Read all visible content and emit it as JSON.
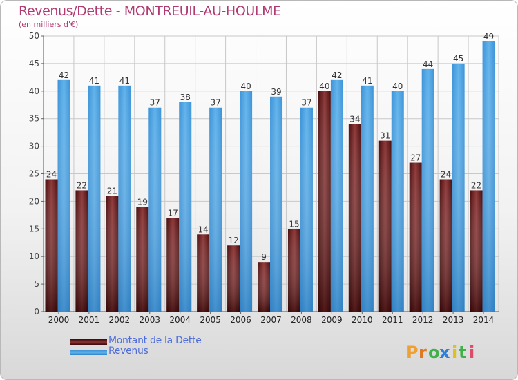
{
  "title": "Revenus/Dette - MONTREUIL-AU-HOULME",
  "subtitle": "(en milliers d'€)",
  "colors": {
    "title": "#b23a73",
    "debt": "#7a2222",
    "revenue": "#4aa3e3",
    "legend_text": "#4f6edc",
    "grid": "#c8c8c8"
  },
  "logo": {
    "text": "Proxiti",
    "letters": [
      "P",
      "r",
      "o",
      "x",
      "i",
      "t",
      "i"
    ]
  },
  "chart_data": {
    "type": "bar",
    "categories": [
      "2000",
      "2001",
      "2002",
      "2003",
      "2004",
      "2005",
      "2006",
      "2007",
      "2008",
      "2009",
      "2010",
      "2011",
      "2012",
      "2013",
      "2014"
    ],
    "series": [
      {
        "name": "Montant de la Dette",
        "values": [
          24,
          22,
          21,
          19,
          17,
          14,
          12,
          9,
          15,
          40,
          34,
          31,
          27,
          24,
          22
        ]
      },
      {
        "name": "Revenus",
        "values": [
          42,
          41,
          41,
          37,
          38,
          37,
          40,
          39,
          37,
          42,
          41,
          40,
          44,
          45,
          49
        ]
      }
    ],
    "ylim": [
      0,
      50
    ],
    "yticks": [
      0,
      5,
      10,
      15,
      20,
      25,
      30,
      35,
      40,
      45,
      50
    ],
    "grid": true,
    "legend_position": "bottom-left"
  }
}
